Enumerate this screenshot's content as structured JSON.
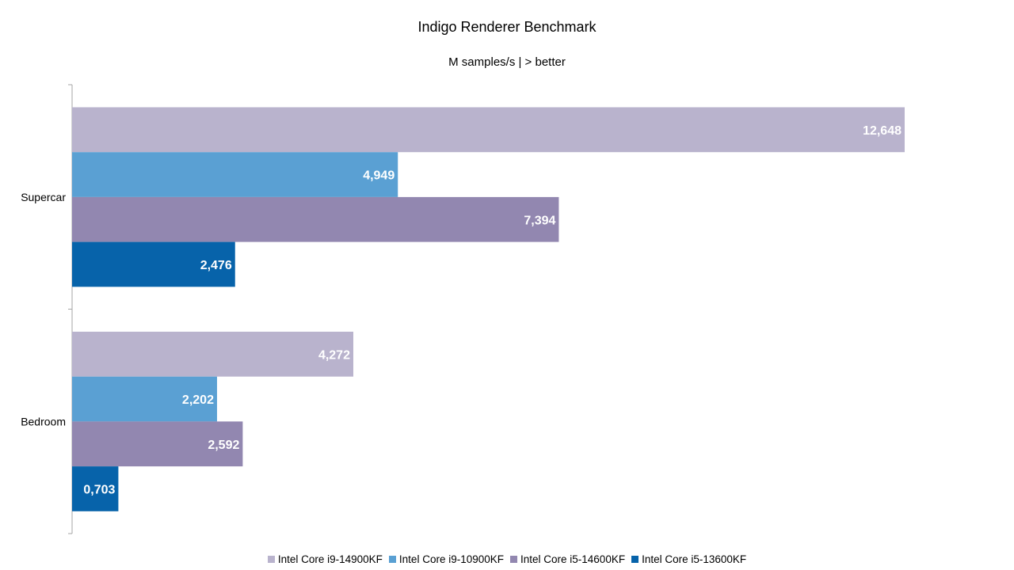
{
  "chart_data": {
    "type": "bar",
    "orientation": "horizontal",
    "title": "Indigo Renderer Benchmark",
    "subtitle": "M samples/s | > better",
    "categories": [
      "Supercar",
      "Bedroom"
    ],
    "series": [
      {
        "name": "Intel Core i9-14900KF",
        "color": "#b9b3cd",
        "values": [
          12.648,
          4.272
        ],
        "labels": [
          "12,648",
          "4,272"
        ]
      },
      {
        "name": "Intel Core i9-10900KF",
        "color": "#5aa0d3",
        "values": [
          4.949,
          2.202
        ],
        "labels": [
          "4,949",
          "2,202"
        ]
      },
      {
        "name": "Intel Core i5-14600KF",
        "color": "#9287b0",
        "values": [
          7.394,
          2.592
        ],
        "labels": [
          "7,394",
          "2,592"
        ]
      },
      {
        "name": "Intel Core i5-13600KF",
        "color": "#0763aa",
        "values": [
          2.476,
          0.703
        ],
        "labels": [
          "2,476",
          "0,703"
        ]
      }
    ],
    "xlim": [
      0,
      13.5
    ],
    "grid": false,
    "legend": "bottom"
  }
}
